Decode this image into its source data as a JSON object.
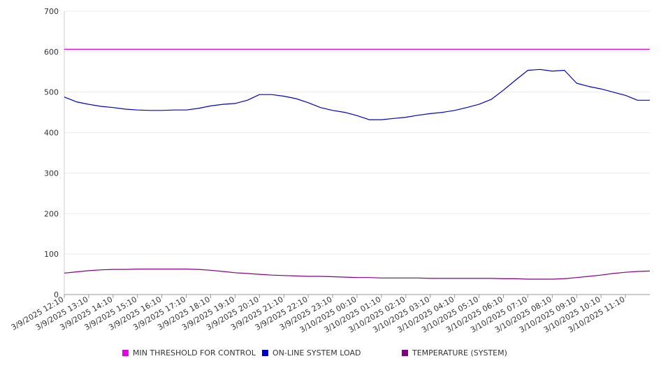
{
  "chart_data": {
    "type": "line",
    "ylim": [
      0,
      700
    ],
    "y_ticks": [
      0,
      100,
      200,
      300,
      400,
      500,
      600,
      700
    ],
    "y_tick_labels": [
      "0",
      "100",
      "200",
      "300",
      "400",
      "500",
      "600",
      "700"
    ],
    "grid": true,
    "legend_position": "bottom",
    "x_tick_labels": [
      "3/9/2025 12:10",
      "3/9/2025 13:10",
      "3/9/2025 14:10",
      "3/9/2025 15:10",
      "3/9/2025 16:10",
      "3/9/2025 17:10",
      "3/9/2025 18:10",
      "3/9/2025 19:10",
      "3/9/2025 20:10",
      "3/9/2025 21:10",
      "3/9/2025 22:10",
      "3/9/2025 23:10",
      "3/10/2025 00:10",
      "3/10/2025 01:10",
      "3/10/2025 02:10",
      "3/10/2025 03:10",
      "3/10/2025 04:10",
      "3/10/2025 05:10",
      "3/10/2025 06:10",
      "3/10/2025 07:10",
      "3/10/2025 08:10",
      "3/10/2025 09:10",
      "3/10/2025 10:10",
      "3/10/2025 11:10"
    ],
    "x": [
      "3/9/2025 12:10",
      "3/9/2025 12:40",
      "3/9/2025 13:10",
      "3/9/2025 13:40",
      "3/9/2025 14:10",
      "3/9/2025 14:40",
      "3/9/2025 15:10",
      "3/9/2025 15:40",
      "3/9/2025 16:10",
      "3/9/2025 16:40",
      "3/9/2025 17:10",
      "3/9/2025 17:40",
      "3/9/2025 18:10",
      "3/9/2025 18:40",
      "3/9/2025 19:10",
      "3/9/2025 19:40",
      "3/9/2025 20:10",
      "3/9/2025 20:40",
      "3/9/2025 21:10",
      "3/9/2025 21:40",
      "3/9/2025 22:10",
      "3/9/2025 22:40",
      "3/9/2025 23:10",
      "3/9/2025 23:40",
      "3/10/2025 00:10",
      "3/10/2025 00:40",
      "3/10/2025 01:10",
      "3/10/2025 01:40",
      "3/10/2025 02:10",
      "3/10/2025 02:40",
      "3/10/2025 03:10",
      "3/10/2025 03:40",
      "3/10/2025 04:10",
      "3/10/2025 04:40",
      "3/10/2025 05:10",
      "3/10/2025 05:40",
      "3/10/2025 06:10",
      "3/10/2025 06:40",
      "3/10/2025 07:10",
      "3/10/2025 07:40",
      "3/10/2025 08:10",
      "3/10/2025 08:40",
      "3/10/2025 09:10",
      "3/10/2025 09:40",
      "3/10/2025 10:10",
      "3/10/2025 10:40",
      "3/10/2025 11:10",
      "3/10/2025 11:40",
      "3/10/2025 12:10"
    ],
    "series": [
      {
        "name": "MIN THRESHOLD FOR CONTROL",
        "color": "#e600e6",
        "values": [
          606,
          606,
          606,
          606,
          606,
          606,
          606,
          606,
          606,
          606,
          606,
          606,
          606,
          606,
          606,
          606,
          606,
          606,
          606,
          606,
          606,
          606,
          606,
          606,
          606,
          606,
          606,
          606,
          606,
          606,
          606,
          606,
          606,
          606,
          606,
          606,
          606,
          606,
          606,
          606,
          606,
          606,
          606,
          606,
          606,
          606,
          606,
          606,
          606
        ]
      },
      {
        "name": "ON-LINE SYSTEM LOAD",
        "color": "#0000cc",
        "values": [
          488,
          476,
          470,
          465,
          462,
          458,
          456,
          455,
          455,
          456,
          456,
          460,
          466,
          470,
          472,
          480,
          494,
          494,
          490,
          484,
          474,
          462,
          455,
          450,
          442,
          432,
          432,
          435,
          438,
          443,
          447,
          450,
          455,
          462,
          470,
          482,
          505,
          530,
          554,
          556,
          552,
          554,
          522,
          514,
          508,
          500,
          492,
          480,
          480
        ]
      },
      {
        "name": "TEMPERATURE (SYSTEM)",
        "color": "#800080",
        "values": [
          53,
          56,
          59,
          61,
          62,
          62,
          63,
          63,
          63,
          63,
          63,
          62,
          60,
          57,
          54,
          52,
          50,
          48,
          47,
          46,
          45,
          45,
          44,
          43,
          42,
          42,
          41,
          41,
          41,
          41,
          40,
          40,
          40,
          40,
          40,
          40,
          39,
          39,
          38,
          38,
          38,
          39,
          42,
          45,
          48,
          52,
          55,
          57,
          58
        ]
      }
    ]
  }
}
